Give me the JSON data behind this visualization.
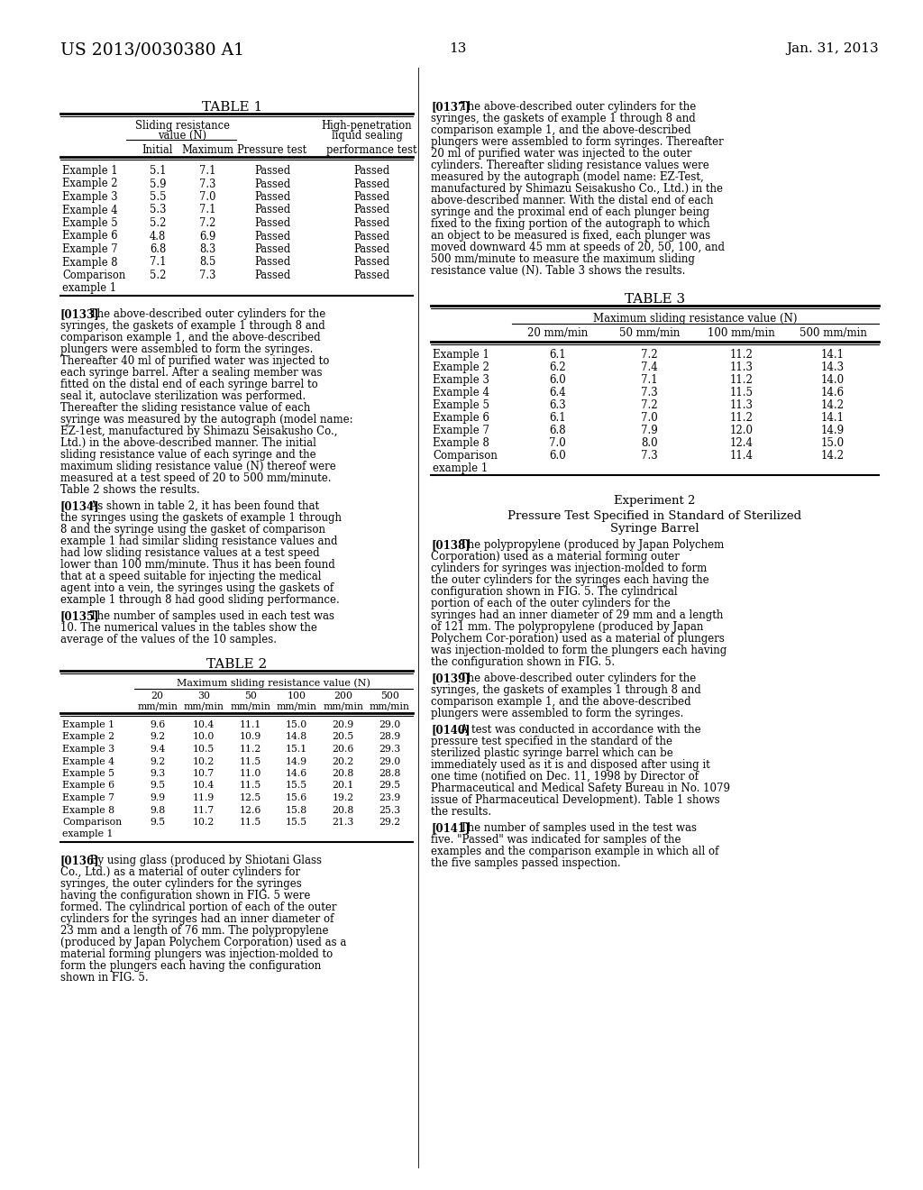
{
  "header_left": "US 2013/0030380 A1",
  "header_right": "Jan. 31, 2013",
  "page_number": "13",
  "background_color": "#ffffff",
  "table1_title": "TABLE 1",
  "table1_rows": [
    [
      "Example 1",
      "5.1",
      "7.1",
      "Passed",
      "Passed"
    ],
    [
      "Example 2",
      "5.9",
      "7.3",
      "Passed",
      "Passed"
    ],
    [
      "Example 3",
      "5.5",
      "7.0",
      "Passed",
      "Passed"
    ],
    [
      "Example 4",
      "5.3",
      "7.1",
      "Passed",
      "Passed"
    ],
    [
      "Example 5",
      "5.2",
      "7.2",
      "Passed",
      "Passed"
    ],
    [
      "Example 6",
      "4.8",
      "6.9",
      "Passed",
      "Passed"
    ],
    [
      "Example 7",
      "6.8",
      "8.3",
      "Passed",
      "Passed"
    ],
    [
      "Example 8",
      "7.1",
      "8.5",
      "Passed",
      "Passed"
    ],
    [
      "Comparison\nexample 1",
      "5.2",
      "7.3",
      "Passed",
      "Passed"
    ]
  ],
  "para133_tag": "[0133]",
  "para133_body": "  The above-described outer cylinders for the syringes, the gaskets of example 1 through 8 and comparison example 1, and the above-described plungers were assembled to form the syringes. Thereafter 40 ml of purified water was injected to each syringe barrel. After a sealing member was fitted on the distal end of each syringe barrel to seal it, autoclave sterilization was performed. Thereafter the sliding resistance value of each syringe was measured by the autograph (model name: EZ-1est, manufactured by Shimazu Seisakusho Co., Ltd.) in the above-described manner. The initial sliding resistance value of each syringe and the maximum sliding resistance value (N) thereof were measured at a test speed of 20 to 500 mm/minute. Table 2 shows the results.",
  "para134_tag": "[0134]",
  "para134_body": "  As shown in table 2, it has been found that the syringes using the gaskets of example 1 through 8 and the syringe using the gasket of comparison example 1 had similar sliding resistance values and had low sliding resistance values at a test speed lower than 100 mm/minute. Thus it has been found that at a speed suitable for injecting the medical agent into a vein, the syringes using the gaskets of example 1 through 8 had good sliding performance.",
  "para135_tag": "[0135]",
  "para135_body": "  The number of samples used in each test was 10. The numerical values in the tables show the average of the values of the 10 samples.",
  "table2_title": "TABLE 2",
  "table2_subcols": [
    "20\nmm/min",
    "30\nmm/min",
    "50\nmm/min",
    "100\nmm/min",
    "200\nmm/min",
    "500\nmm/min"
  ],
  "table2_rows": [
    [
      "Example 1",
      "9.6",
      "10.4",
      "11.1",
      "15.0",
      "20.9",
      "29.0"
    ],
    [
      "Example 2",
      "9.2",
      "10.0",
      "10.9",
      "14.8",
      "20.5",
      "28.9"
    ],
    [
      "Example 3",
      "9.4",
      "10.5",
      "11.2",
      "15.1",
      "20.6",
      "29.3"
    ],
    [
      "Example 4",
      "9.2",
      "10.2",
      "11.5",
      "14.9",
      "20.2",
      "29.0"
    ],
    [
      "Example 5",
      "9.3",
      "10.7",
      "11.0",
      "14.6",
      "20.8",
      "28.8"
    ],
    [
      "Example 6",
      "9.5",
      "10.4",
      "11.5",
      "15.5",
      "20.1",
      "29.5"
    ],
    [
      "Example 7",
      "9.9",
      "11.9",
      "12.5",
      "15.6",
      "19.2",
      "23.9"
    ],
    [
      "Example 8",
      "9.8",
      "11.7",
      "12.6",
      "15.8",
      "20.8",
      "25.3"
    ],
    [
      "Comparison\nexample 1",
      "9.5",
      "10.2",
      "11.5",
      "15.5",
      "21.3",
      "29.2"
    ]
  ],
  "para136_tag": "[0136]",
  "para136_body": "  By using glass (produced by Shiotani Glass Co., Ltd.) as a material of outer cylinders for syringes, the outer cylinders for the syringes having the configuration shown in FIG. 5 were formed. The cylindrical portion of each of the outer cylinders for the syringes had an inner diameter of 23 mm and a length of 76 mm. The polypropylene (produced by Japan Polychem Corporation) used as a material forming plungers was injection-molded to form the plungers each having the configuration shown in FIG. 5.",
  "para137_tag": "[0137]",
  "para137_body": "  The above-described outer cylinders for the syringes, the gaskets of example 1 through 8 and comparison example 1, and the above-described plungers were assembled to form syringes. Thereafter 20 ml of purified water was injected to the outer cylinders. Thereafter sliding resistance values were measured by the autograph (model name: EZ-Test, manufactured by Shimazu Seisakusho Co., Ltd.) in the above-described manner. With the distal end of each syringe and the proximal end of each plunger being fixed to the fixing portion of the autograph to which an object to be measured is fixed, each plunger was moved downward 45 mm at speeds of 20, 50, 100, and 500 mm/minute to measure the maximum sliding resistance value (N). Table 3 shows the results.",
  "table3_title": "TABLE 3",
  "table3_subcols": [
    "20 mm/min",
    "50 mm/min",
    "100 mm/min",
    "500 mm/min"
  ],
  "table3_rows": [
    [
      "Example 1",
      "6.1",
      "7.2",
      "11.2",
      "14.1"
    ],
    [
      "Example 2",
      "6.2",
      "7.4",
      "11.3",
      "14.3"
    ],
    [
      "Example 3",
      "6.0",
      "7.1",
      "11.2",
      "14.0"
    ],
    [
      "Example 4",
      "6.4",
      "7.3",
      "11.5",
      "14.6"
    ],
    [
      "Example 5",
      "6.3",
      "7.2",
      "11.3",
      "14.2"
    ],
    [
      "Example 6",
      "6.1",
      "7.0",
      "11.2",
      "14.1"
    ],
    [
      "Example 7",
      "6.8",
      "7.9",
      "12.0",
      "14.9"
    ],
    [
      "Example 8",
      "7.0",
      "8.0",
      "12.4",
      "15.0"
    ],
    [
      "Comparison\nexample 1",
      "6.0",
      "7.3",
      "11.4",
      "14.2"
    ]
  ],
  "exp2_title": "Experiment 2",
  "exp2_subtitle1": "Pressure Test Specified in Standard of Sterilized",
  "exp2_subtitle2": "Syringe Barrel",
  "para138_tag": "[0138]",
  "para138_body": "  The polypropylene (produced by Japan Polychem Corporation) used as a material forming outer cylinders for syringes was injection-molded to form the outer cylinders for the syringes each having the configuration shown in FIG. 5. The cylindrical portion of each of the outer cylinders for the syringes had an inner diameter of 29 mm and a length of 121 mm. The polypropylene (produced by Japan Polychem Cor-poration) used as a material of plungers was injection-molded to form the plungers each having the configuration shown in FIG. 5.",
  "para139_tag": "[0139]",
  "para139_body": "  The above-described outer cylinders for the syringes, the gaskets of examples 1 through 8 and comparison example 1, and the above-described plungers were assembled to form the syringes.",
  "para140_tag": "[0140]",
  "para140_body": "  A test was conducted in accordance with the pressure test specified in the standard of the sterilized plastic syringe barrel which can be immediately used as it is and disposed after using it one time (notified on Dec. 11, 1998 by Director of Pharmaceutical and Medical Safety Bureau in No. 1079 issue of Pharmaceutical Development). Table 1 shows the results.",
  "para141_tag": "[0141]",
  "para141_body": "  The number of samples used in the test was five. \"Passed\" was indicated for samples of the examples and the comparison example in which all of the five samples passed inspection."
}
